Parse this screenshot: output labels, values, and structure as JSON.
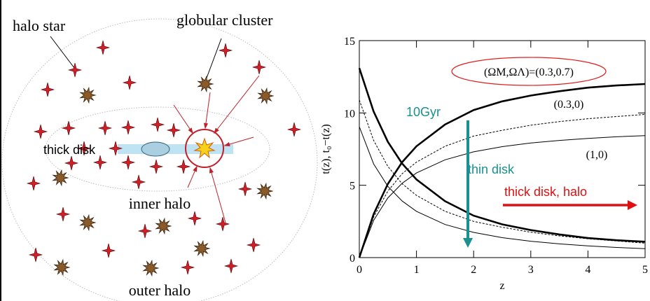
{
  "diagram": {
    "labels": {
      "halo_star": "halo star",
      "globular_cluster": "globular cluster",
      "thick_disk": "thick disk",
      "inner_halo": "inner halo",
      "outer_halo": "outer halo"
    }
  },
  "chart_data": {
    "type": "line",
    "x_label": "z",
    "y_label": "t(z), t₀−t(z)",
    "x": [
      0,
      0.25,
      0.5,
      0.75,
      1,
      1.5,
      2,
      2.5,
      3,
      3.5,
      4,
      4.5,
      5
    ],
    "series": [
      {
        "name": "(ΩM,ΩΛ)=(0.3,0.7)",
        "color": "#000000",
        "style": "thick",
        "values": [
          0,
          3.0,
          5.1,
          6.6,
          7.7,
          9.2,
          10.2,
          10.8,
          11.2,
          11.5,
          11.75,
          11.9,
          12.0
        ]
      },
      {
        "color": "#000000",
        "style": "thick",
        "values": [
          13.1,
          10.1,
          8.0,
          6.5,
          5.4,
          3.9,
          2.9,
          2.3,
          1.9,
          1.6,
          1.35,
          1.2,
          1.1
        ]
      },
      {
        "name": "(0.3,0)",
        "color": "#000000",
        "style": "dotted",
        "values": [
          0,
          2.8,
          4.6,
          5.8,
          6.6,
          7.7,
          8.4,
          8.8,
          9.15,
          9.4,
          9.6,
          9.75,
          9.9
        ]
      },
      {
        "color": "#000000",
        "style": "dotted",
        "values": [
          10.9,
          8.1,
          6.3,
          5.1,
          4.3,
          3.2,
          2.5,
          2.1,
          1.75,
          1.5,
          1.3,
          1.15,
          1.0
        ]
      },
      {
        "name": "(1,0)",
        "color": "#000000",
        "style": "thin",
        "values": [
          0,
          2.57,
          4.13,
          5.14,
          5.85,
          6.76,
          7.31,
          7.67,
          7.92,
          8.1,
          8.24,
          8.35,
          8.43
        ]
      },
      {
        "color": "#000000",
        "style": "thin",
        "values": [
          9.05,
          6.48,
          4.92,
          3.91,
          3.2,
          2.29,
          1.74,
          1.38,
          1.13,
          0.95,
          0.81,
          0.7,
          0.62
        ]
      }
    ],
    "annotations": [
      "10Gyr",
      "thin disk",
      "thick disk, halo"
    ],
    "xlim": [
      0,
      5
    ],
    "ylim": [
      0,
      15
    ],
    "xticks": [
      0,
      1,
      2,
      3,
      4,
      5
    ],
    "yticks": [
      0,
      5,
      10,
      15
    ]
  }
}
